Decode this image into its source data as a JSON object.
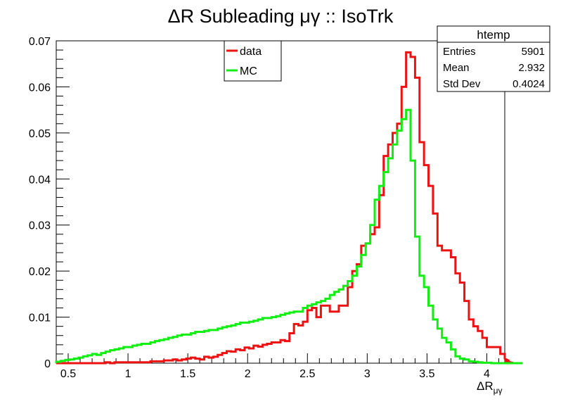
{
  "chart_data": {
    "type": "line",
    "title": "ΔR Subleading μγ :: IsoTrk",
    "xlabel": "ΔR",
    "xlabel_sub": "μγ",
    "ylabel": "",
    "xlim": [
      0.4,
      4.15
    ],
    "ylim": [
      0,
      0.07
    ],
    "xticks": [
      "0.5",
      "1",
      "1.5",
      "2",
      "2.5",
      "3",
      "3.5",
      "4"
    ],
    "yticks": [
      "0",
      "0.01",
      "0.02",
      "0.03",
      "0.04",
      "0.05",
      "0.06",
      "0.07"
    ],
    "grid": false,
    "legend_position": "top-center",
    "series": [
      {
        "name": "data",
        "color": "#ee1111",
        "bin_edges_start": 0.4,
        "bin_width": 0.0375,
        "values": [
          0,
          0,
          0,
          0,
          0,
          0,
          0,
          0,
          0,
          0,
          0,
          0.0002,
          0,
          0.0002,
          0.0002,
          0.0002,
          0.0002,
          0.0002,
          0.0002,
          0.0002,
          0.0002,
          0.0004,
          0.0004,
          0.0004,
          0.0006,
          0.0006,
          0.0008,
          0.0006,
          0.0008,
          0.001,
          0.0012,
          0.001,
          0.0008,
          0.0014,
          0.0012,
          0.0014,
          0.0018,
          0.0022,
          0.0026,
          0.0025,
          0.003,
          0.0028,
          0.0034,
          0.0032,
          0.0038,
          0.0036,
          0.004,
          0.0042,
          0.0045,
          0.0045,
          0.005,
          0.0048,
          0.0065,
          0.0085,
          0.0082,
          0.009,
          0.0115,
          0.012,
          0.01,
          0.0125,
          0.0125,
          0.0112,
          0.0112,
          0.0125,
          0.0125,
          0.0165,
          0.02,
          0.0215,
          0.0255,
          0.026,
          0.028,
          0.0295,
          0.0365,
          0.045,
          0.0475,
          0.05,
          0.052,
          0.06,
          0.0675,
          0.0665,
          0.062,
          0.048,
          0.043,
          0.0385,
          0.0325,
          0.0255,
          0.0245,
          0.0245,
          0.023,
          0.0195,
          0.0175,
          0.0135,
          0.0095,
          0.008,
          0.007,
          0.0055,
          0.0035,
          0.0035,
          0.0035,
          0.002,
          0.001,
          0.0005,
          0,
          0,
          0
        ]
      },
      {
        "name": "MC",
        "color": "#11ee11",
        "bin_edges_start": 0.4,
        "bin_width": 0.0375,
        "values": [
          0.0003,
          0.0005,
          0.0007,
          0.0008,
          0.001,
          0.0012,
          0.0015,
          0.0017,
          0.002,
          0.0018,
          0.0022,
          0.0025,
          0.0028,
          0.003,
          0.0032,
          0.0035,
          0.0035,
          0.0038,
          0.004,
          0.0042,
          0.0042,
          0.0045,
          0.0048,
          0.005,
          0.0052,
          0.0055,
          0.0057,
          0.006,
          0.0062,
          0.0062,
          0.0065,
          0.0068,
          0.0068,
          0.007,
          0.0072,
          0.0072,
          0.0075,
          0.0078,
          0.008,
          0.0082,
          0.0085,
          0.0088,
          0.0088,
          0.009,
          0.0092,
          0.0095,
          0.0098,
          0.0098,
          0.01,
          0.0102,
          0.0105,
          0.0108,
          0.011,
          0.0112,
          0.0112,
          0.012,
          0.0125,
          0.0128,
          0.0132,
          0.0135,
          0.014,
          0.0148,
          0.0155,
          0.016,
          0.0168,
          0.0178,
          0.019,
          0.021,
          0.0235,
          0.026,
          0.03,
          0.0355,
          0.0385,
          0.0415,
          0.0445,
          0.0475,
          0.0505,
          0.053,
          0.055,
          0.044,
          0.0275,
          0.019,
          0.0165,
          0.0125,
          0.0095,
          0.0075,
          0.0055,
          0.0045,
          0.003,
          0.0015,
          0.001,
          0.0008,
          0.0004,
          0.0003,
          0.0002,
          0.0001,
          0.0001,
          0,
          0,
          0,
          0,
          0,
          0,
          0,
          0
        ]
      }
    ]
  },
  "stats_box": {
    "title": "htemp",
    "rows": [
      {
        "label": "Entries",
        "value": "5901"
      },
      {
        "label": "Mean",
        "value": "2.932"
      },
      {
        "label": "Std Dev",
        "value": "0.4024"
      }
    ]
  }
}
